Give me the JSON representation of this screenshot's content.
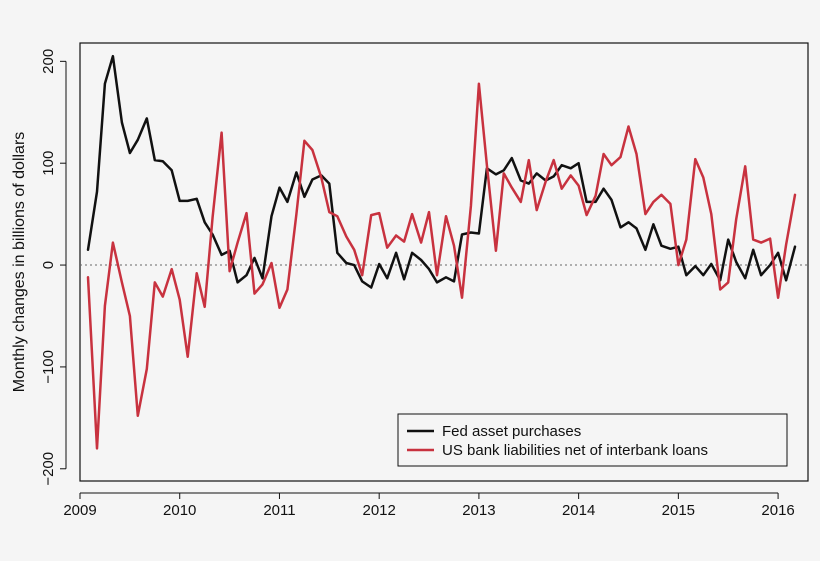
{
  "chart_data": {
    "type": "line",
    "title": "",
    "xlabel": "",
    "ylabel": "Monthly changes in billions of dollars",
    "xlim": [
      2009.0,
      2016.3
    ],
    "ylim": [
      -212,
      218
    ],
    "x_ticks": [
      2009,
      2010,
      2011,
      2012,
      2013,
      2014,
      2015,
      2016
    ],
    "x_tick_labels": [
      "2009",
      "2010",
      "2011",
      "2012",
      "2013",
      "2014",
      "2015",
      "2016"
    ],
    "y_ticks": [
      -200,
      -100,
      0,
      100,
      200
    ],
    "y_tick_labels": [
      "−200",
      "−100",
      "0",
      "100",
      "200"
    ],
    "reference_line": 0,
    "grid": false,
    "legend_position": "bottom-right",
    "x": [
      2009.08,
      2009.17,
      2009.25,
      2009.33,
      2009.42,
      2009.5,
      2009.58,
      2009.67,
      2009.75,
      2009.83,
      2009.92,
      2010.0,
      2010.08,
      2010.17,
      2010.25,
      2010.33,
      2010.42,
      2010.5,
      2010.58,
      2010.67,
      2010.75,
      2010.83,
      2010.92,
      2011.0,
      2011.08,
      2011.17,
      2011.25,
      2011.33,
      2011.42,
      2011.5,
      2011.58,
      2011.67,
      2011.75,
      2011.83,
      2011.92,
      2012.0,
      2012.08,
      2012.17,
      2012.25,
      2012.33,
      2012.42,
      2012.5,
      2012.58,
      2012.67,
      2012.75,
      2012.83,
      2012.92,
      2013.0,
      2013.08,
      2013.17,
      2013.25,
      2013.33,
      2013.42,
      2013.5,
      2013.58,
      2013.67,
      2013.75,
      2013.83,
      2013.92,
      2014.0,
      2014.08,
      2014.17,
      2014.25,
      2014.33,
      2014.42,
      2014.5,
      2014.58,
      2014.67,
      2014.75,
      2014.83,
      2014.92,
      2015.0,
      2015.08,
      2015.17,
      2015.25,
      2015.33,
      2015.42,
      2015.5,
      2015.58,
      2015.67,
      2015.75,
      2015.83,
      2015.92,
      2016.0,
      2016.08,
      2016.17
    ],
    "series": [
      {
        "name": "Fed asset purchases",
        "color": "#111111",
        "values": [
          15,
          72,
          178,
          205,
          140,
          110,
          123,
          144,
          103,
          102,
          93,
          63,
          63,
          65,
          42,
          30,
          10,
          14,
          -17,
          -10,
          7,
          -13,
          48,
          76,
          62,
          91,
          67,
          84,
          88,
          80,
          12,
          2,
          0,
          -16,
          -22,
          1,
          -13,
          12,
          -14,
          12,
          5,
          -4,
          -17,
          -12,
          -16,
          30,
          32,
          31,
          95,
          89,
          93,
          105,
          83,
          80,
          90,
          83,
          87,
          98,
          95,
          100,
          62,
          62,
          75,
          64,
          37,
          42,
          36,
          15,
          40,
          19,
          16,
          18,
          -10,
          -1,
          -10,
          1,
          -15,
          25,
          3,
          -13,
          15,
          -10,
          0,
          12,
          -15,
          18
        ]
      },
      {
        "name": "US bank liabilities net of interbank loans",
        "color": "#c8323f",
        "values": [
          -12,
          -180,
          -40,
          22,
          -17,
          -50,
          -148,
          -102,
          -17,
          -31,
          -4,
          -34,
          -90,
          -8,
          -41,
          47,
          130,
          -6,
          22,
          51,
          -28,
          -19,
          2,
          -42,
          -24,
          50,
          122,
          113,
          86,
          52,
          48,
          28,
          15,
          -10,
          49,
          51,
          17,
          29,
          23,
          50,
          22,
          52,
          -10,
          48,
          19,
          -32,
          58,
          178,
          98,
          14,
          90,
          76,
          62,
          103,
          54,
          82,
          103,
          75,
          88,
          78,
          49,
          68,
          109,
          98,
          106,
          136,
          109,
          50,
          62,
          69,
          60,
          0,
          25,
          104,
          86,
          50,
          -24,
          -17,
          45,
          97,
          25,
          22,
          26,
          -32,
          20,
          69
        ]
      }
    ]
  }
}
